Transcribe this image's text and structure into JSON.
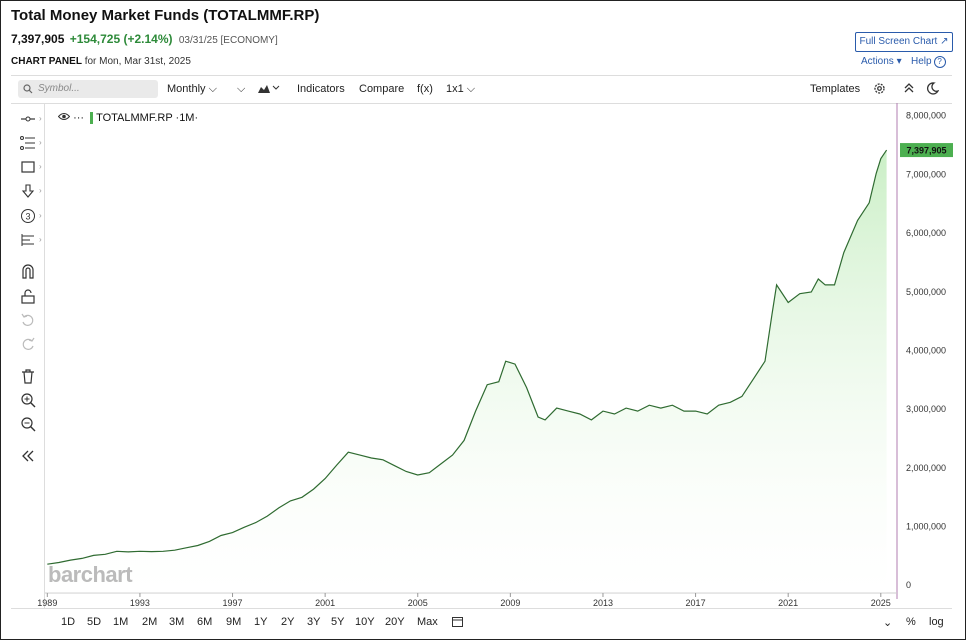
{
  "header": {
    "title": "Total Money Market Funds (TOTALMMF.RP)",
    "last": "7,397,905",
    "change": "+154,725 (+2.14%)",
    "date_info": "03/31/25 [ECONOMY]",
    "panel_label": "CHART PANEL",
    "panel_date": "for Mon, Mar 31st, 2025",
    "fullscreen": "Full Screen Chart ↗",
    "actions": "Actions ▾",
    "help": "Help"
  },
  "toolbar": {
    "search_placeholder": "Symbol...",
    "interval": "Monthly ⌵",
    "indicators": "Indicators",
    "compare": "Compare",
    "fx": "f(x)",
    "layout": "1x1 ⌵",
    "templates": "Templates"
  },
  "legend": {
    "symbol": "TOTALMMF.RP",
    "interval": "·1M·"
  },
  "watermark": "barchart",
  "ranges": [
    "1D",
    "5D",
    "1M",
    "2M",
    "3M",
    "6M",
    "9M",
    "1Y",
    "2Y",
    "3Y",
    "5Y",
    "10Y",
    "20Y",
    "Max"
  ],
  "bottom_right": {
    "pct": "%",
    "log": "log"
  },
  "colors": {
    "line": "#2f6b31",
    "fill": "#d9f2d6",
    "last_label": "#4caf50",
    "link": "#2a5bab"
  },
  "chart_data": {
    "type": "area",
    "title": "",
    "xlabel": "",
    "ylabel": "",
    "x_ticks": [
      "1989",
      "1993",
      "1997",
      "2001",
      "2005",
      "2009",
      "2013",
      "2017",
      "2021",
      "2025"
    ],
    "y_ticks": [
      "0",
      "1,000,000",
      "2,000,000",
      "3,000,000",
      "4,000,000",
      "5,000,000",
      "6,000,000",
      "7,000,000",
      "8,000,000"
    ],
    "xlim": [
      1988.9,
      2025.7
    ],
    "ylim": [
      -150000,
      8200000
    ],
    "last_value_label": "7,397,905",
    "series": [
      {
        "values": [
          [
            1989.0,
            340000
          ],
          [
            1989.5,
            370000
          ],
          [
            1990.0,
            410000
          ],
          [
            1990.5,
            440000
          ],
          [
            1991.0,
            490000
          ],
          [
            1991.5,
            510000
          ],
          [
            1992.0,
            560000
          ],
          [
            1992.5,
            550000
          ],
          [
            1993.0,
            560000
          ],
          [
            1993.5,
            555000
          ],
          [
            1994.0,
            560000
          ],
          [
            1994.5,
            580000
          ],
          [
            1995.0,
            620000
          ],
          [
            1995.5,
            660000
          ],
          [
            1996.0,
            730000
          ],
          [
            1996.5,
            830000
          ],
          [
            1997.0,
            880000
          ],
          [
            1997.5,
            970000
          ],
          [
            1998.0,
            1050000
          ],
          [
            1998.5,
            1160000
          ],
          [
            1999.0,
            1300000
          ],
          [
            1999.5,
            1420000
          ],
          [
            2000.0,
            1480000
          ],
          [
            2000.5,
            1620000
          ],
          [
            2001.0,
            1800000
          ],
          [
            2001.5,
            2030000
          ],
          [
            2002.0,
            2250000
          ],
          [
            2002.5,
            2200000
          ],
          [
            2003.0,
            2150000
          ],
          [
            2003.5,
            2120000
          ],
          [
            2004.0,
            2020000
          ],
          [
            2004.5,
            1920000
          ],
          [
            2005.0,
            1860000
          ],
          [
            2005.5,
            1900000
          ],
          [
            2006.0,
            2050000
          ],
          [
            2006.5,
            2200000
          ],
          [
            2007.0,
            2450000
          ],
          [
            2007.5,
            2950000
          ],
          [
            2008.0,
            3400000
          ],
          [
            2008.5,
            3450000
          ],
          [
            2008.8,
            3800000
          ],
          [
            2009.2,
            3750000
          ],
          [
            2009.7,
            3350000
          ],
          [
            2010.2,
            2850000
          ],
          [
            2010.5,
            2800000
          ],
          [
            2011.0,
            3000000
          ],
          [
            2011.5,
            2950000
          ],
          [
            2012.0,
            2900000
          ],
          [
            2012.5,
            2800000
          ],
          [
            2013.0,
            2950000
          ],
          [
            2013.5,
            2900000
          ],
          [
            2014.0,
            3000000
          ],
          [
            2014.5,
            2950000
          ],
          [
            2015.0,
            3050000
          ],
          [
            2015.5,
            3000000
          ],
          [
            2016.0,
            3050000
          ],
          [
            2016.5,
            2950000
          ],
          [
            2017.0,
            2950000
          ],
          [
            2017.5,
            2900000
          ],
          [
            2018.0,
            3050000
          ],
          [
            2018.5,
            3100000
          ],
          [
            2019.0,
            3200000
          ],
          [
            2019.5,
            3500000
          ],
          [
            2020.0,
            3800000
          ],
          [
            2020.3,
            4600000
          ],
          [
            2020.5,
            5100000
          ],
          [
            2021.0,
            4800000
          ],
          [
            2021.5,
            4950000
          ],
          [
            2022.0,
            4980000
          ],
          [
            2022.3,
            5200000
          ],
          [
            2022.6,
            5100000
          ],
          [
            2023.0,
            5100000
          ],
          [
            2023.4,
            5650000
          ],
          [
            2024.0,
            6200000
          ],
          [
            2024.5,
            6500000
          ],
          [
            2024.8,
            7000000
          ],
          [
            2025.0,
            7250000
          ],
          [
            2025.25,
            7397905
          ]
        ]
      }
    ]
  }
}
